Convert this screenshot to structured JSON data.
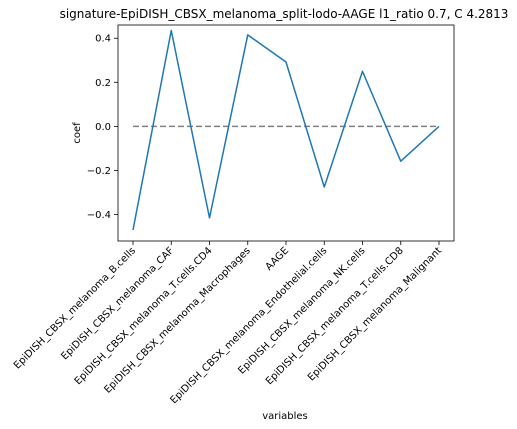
{
  "chart_data": {
    "type": "line",
    "title": "signature-EpiDISH_CBSX_melanoma_split-lodo-AAGE l1_ratio 0.7, C 4.2813",
    "xlabel": "variables",
    "ylabel": "coef",
    "categories": [
      "EpiDISH_CBSX_melanoma_B.cells",
      "EpiDISH_CBSX_melanoma_CAF",
      "EpiDISH_CBSX_melanoma_T.cells.CD4",
      "EpiDISH_CBSX_melanoma_Macrophages",
      "AAGE",
      "EpiDISH_CBSX_melanoma_Endothelial.cells",
      "EpiDISH_CBSX_melanoma_NK.cells",
      "EpiDISH_CBSX_melanoma_T.cells.CD8",
      "EpiDISH_CBSX_melanoma_Malignant"
    ],
    "series": [
      {
        "values": [
          -0.47,
          0.435,
          -0.415,
          0.415,
          0.292,
          -0.275,
          0.25,
          -0.158,
          0.0
        ],
        "color": "#1f77b4"
      }
    ],
    "reference_line": {
      "y": 0,
      "style": "dashed",
      "color": "#808080"
    },
    "ylim": [
      -0.52,
      0.46
    ],
    "yticks": [
      -0.4,
      -0.2,
      0.0,
      0.2,
      0.4
    ],
    "ytick_labels": [
      "−0.4",
      "−0.2",
      "0.0",
      "0.2",
      "0.4"
    ],
    "grid": false,
    "legend": "none"
  }
}
